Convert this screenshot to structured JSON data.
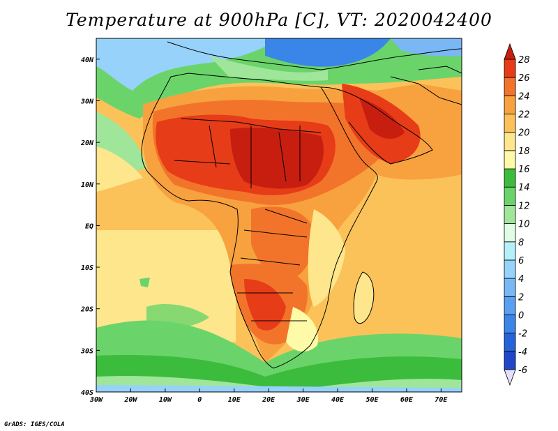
{
  "title": "Temperature at 900hPa [C], VT: 2020042400",
  "credit": "GrADS: IGES/COLA",
  "map": {
    "lon_range": [
      -30,
      76
    ],
    "lat_range": [
      -40,
      45
    ],
    "lon_ticks": [
      {
        "value": -30,
        "label": "30W"
      },
      {
        "value": -20,
        "label": "20W"
      },
      {
        "value": -10,
        "label": "10W"
      },
      {
        "value": 0,
        "label": "0"
      },
      {
        "value": 10,
        "label": "10E"
      },
      {
        "value": 20,
        "label": "20E"
      },
      {
        "value": 30,
        "label": "30E"
      },
      {
        "value": 40,
        "label": "40E"
      },
      {
        "value": 50,
        "label": "50E"
      },
      {
        "value": 60,
        "label": "60E"
      },
      {
        "value": 70,
        "label": "70E"
      }
    ],
    "lat_ticks": [
      {
        "value": 40,
        "label": "40N"
      },
      {
        "value": 30,
        "label": "30N"
      },
      {
        "value": 20,
        "label": "20N"
      },
      {
        "value": 10,
        "label": "10N"
      },
      {
        "value": 0,
        "label": "EQ"
      },
      {
        "value": -10,
        "label": "10S"
      },
      {
        "value": -20,
        "label": "20S"
      },
      {
        "value": -30,
        "label": "30S"
      },
      {
        "value": -40,
        "label": "40S"
      }
    ]
  },
  "colorbar": {
    "levels": [
      {
        "label": "-6",
        "color": "#1e2b8c"
      },
      {
        "label": "-4",
        "color": "#1f47c8"
      },
      {
        "label": "-2",
        "color": "#2563d8"
      },
      {
        "label": "0",
        "color": "#3a86e8"
      },
      {
        "label": "2",
        "color": "#5aa0f0"
      },
      {
        "label": "4",
        "color": "#7ab8f5"
      },
      {
        "label": "6",
        "color": "#96d2fa"
      },
      {
        "label": "8",
        "color": "#b4f0fa"
      },
      {
        "label": "10",
        "color": "#e0fde4"
      },
      {
        "label": "12",
        "color": "#a0e69a"
      },
      {
        "label": "14",
        "color": "#6ad46a"
      },
      {
        "label": "16",
        "color": "#3cbc3c"
      },
      {
        "label": "18",
        "color": "#fffaa8"
      },
      {
        "label": "20",
        "color": "#fde68c"
      },
      {
        "label": "22",
        "color": "#fbc25a"
      },
      {
        "label": "24",
        "color": "#f7a23e"
      },
      {
        "label": "26",
        "color": "#f2742a"
      },
      {
        "label": "28",
        "color": "#e63c18"
      }
    ],
    "under_color": "#e6e0ff",
    "over_color": "#c81e10"
  }
}
